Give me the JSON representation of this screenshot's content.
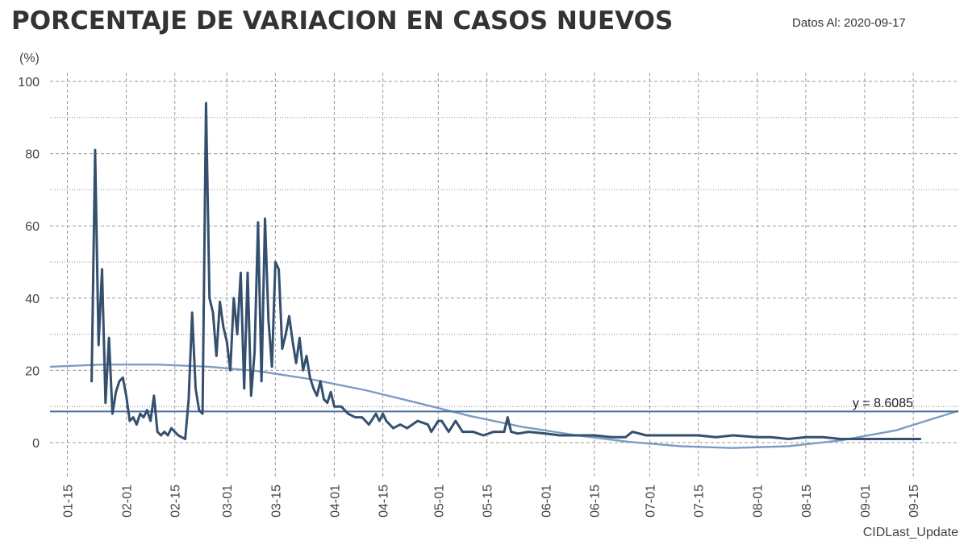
{
  "header": {
    "title": "PORCENTAJE DE VARIACION EN CASOS NUEVOS",
    "date_label": "Datos Al:",
    "date_value": "2020-09-17"
  },
  "chart_data": {
    "type": "line",
    "ylabel": "(%)",
    "xlabel": "CIDLast_Update",
    "ylim": [
      -8,
      100
    ],
    "yticks": [
      0,
      20,
      40,
      60,
      80,
      100
    ],
    "x_range": [
      "2020-01-10",
      "2020-09-28"
    ],
    "x_ticks": [
      "01-15",
      "02-01",
      "02-15",
      "03-01",
      "03-15",
      "04-01",
      "04-15",
      "05-01",
      "05-15",
      "06-01",
      "06-15",
      "07-01",
      "07-15",
      "08-01",
      "08-15",
      "09-01",
      "09-15"
    ],
    "x_tick_dates": [
      "2020-01-15",
      "2020-02-01",
      "2020-02-15",
      "2020-03-01",
      "2020-03-15",
      "2020-04-01",
      "2020-04-15",
      "2020-05-01",
      "2020-05-15",
      "2020-06-01",
      "2020-06-15",
      "2020-07-01",
      "2020-07-15",
      "2020-08-01",
      "2020-08-15",
      "2020-09-01",
      "2020-09-15"
    ],
    "grid": true,
    "annotation": "y = 8.6085",
    "mean_value": 8.6085,
    "colors": {
      "series": "#34506e",
      "trend": "#7b9cc4",
      "mean": "#4a6e9c"
    },
    "series": [
      {
        "key": "daily",
        "x": [
          "2020-01-22",
          "2020-01-23",
          "2020-01-24",
          "2020-01-25",
          "2020-01-26",
          "2020-01-27",
          "2020-01-28",
          "2020-01-29",
          "2020-01-30",
          "2020-01-31",
          "2020-02-01",
          "2020-02-02",
          "2020-02-03",
          "2020-02-04",
          "2020-02-05",
          "2020-02-06",
          "2020-02-07",
          "2020-02-08",
          "2020-02-09",
          "2020-02-10",
          "2020-02-11",
          "2020-02-12",
          "2020-02-13",
          "2020-02-14",
          "2020-02-15",
          "2020-02-16",
          "2020-02-17",
          "2020-02-18",
          "2020-02-19",
          "2020-02-20",
          "2020-02-21",
          "2020-02-22",
          "2020-02-23",
          "2020-02-24",
          "2020-02-25",
          "2020-02-26",
          "2020-02-27",
          "2020-02-28",
          "2020-02-29",
          "2020-03-01",
          "2020-03-02",
          "2020-03-03",
          "2020-03-04",
          "2020-03-05",
          "2020-03-06",
          "2020-03-07",
          "2020-03-08",
          "2020-03-09",
          "2020-03-10",
          "2020-03-11",
          "2020-03-12",
          "2020-03-13",
          "2020-03-14",
          "2020-03-15",
          "2020-03-16",
          "2020-03-17",
          "2020-03-18",
          "2020-03-19",
          "2020-03-20",
          "2020-03-21",
          "2020-03-22",
          "2020-03-23",
          "2020-03-24",
          "2020-03-25",
          "2020-03-26",
          "2020-03-27",
          "2020-03-28",
          "2020-03-29",
          "2020-03-30",
          "2020-03-31",
          "2020-04-01",
          "2020-04-03",
          "2020-04-05",
          "2020-04-07",
          "2020-04-09",
          "2020-04-11",
          "2020-04-13",
          "2020-04-14",
          "2020-04-15",
          "2020-04-16",
          "2020-04-18",
          "2020-04-20",
          "2020-04-22",
          "2020-04-25",
          "2020-04-28",
          "2020-04-29",
          "2020-05-01",
          "2020-05-02",
          "2020-05-04",
          "2020-05-06",
          "2020-05-08",
          "2020-05-11",
          "2020-05-14",
          "2020-05-17",
          "2020-05-20",
          "2020-05-21",
          "2020-05-22",
          "2020-05-24",
          "2020-05-27",
          "2020-06-01",
          "2020-06-05",
          "2020-06-10",
          "2020-06-15",
          "2020-06-20",
          "2020-06-24",
          "2020-06-26",
          "2020-06-30",
          "2020-07-05",
          "2020-07-10",
          "2020-07-15",
          "2020-07-20",
          "2020-07-25",
          "2020-08-01",
          "2020-08-05",
          "2020-08-10",
          "2020-08-15",
          "2020-08-20",
          "2020-08-25",
          "2020-09-01",
          "2020-09-05",
          "2020-09-10",
          "2020-09-14",
          "2020-09-17"
        ],
        "y": [
          17,
          81,
          27,
          48,
          11,
          29,
          8,
          14,
          17,
          18,
          13,
          6,
          7,
          5,
          8,
          7,
          9,
          6,
          13,
          3,
          2,
          3,
          2,
          4,
          3,
          2,
          1.5,
          1,
          12,
          36,
          15,
          9,
          8,
          94,
          40,
          36,
          24,
          39,
          32,
          28,
          20,
          40,
          30,
          47,
          15,
          47,
          13,
          25,
          61,
          17,
          62,
          34,
          21,
          50,
          48,
          26,
          30,
          35,
          28,
          22,
          29,
          20,
          24,
          18,
          15,
          13,
          17,
          12,
          11,
          14,
          10,
          10,
          8,
          7,
          7,
          5,
          8,
          6,
          8,
          6,
          4,
          5,
          4,
          6,
          5,
          3,
          6,
          6,
          3,
          6,
          3,
          3,
          2,
          3,
          3,
          7,
          3,
          2.5,
          3,
          2.5,
          2,
          2,
          2,
          1.5,
          1.5,
          3,
          2,
          2,
          2,
          2,
          1.5,
          2,
          1.5,
          1.5,
          1,
          1.5,
          1.5,
          1,
          1,
          1,
          1,
          1,
          1
        ]
      },
      {
        "key": "trend",
        "x": [
          "2020-01-10",
          "2020-01-25",
          "2020-02-10",
          "2020-02-25",
          "2020-03-10",
          "2020-03-25",
          "2020-04-10",
          "2020-04-25",
          "2020-05-10",
          "2020-05-25",
          "2020-06-10",
          "2020-06-25",
          "2020-07-10",
          "2020-07-25",
          "2020-08-10",
          "2020-08-25",
          "2020-09-10",
          "2020-09-28"
        ],
        "y": [
          21,
          21.6,
          21.6,
          21,
          19.8,
          17.6,
          14.5,
          11,
          7.4,
          4.4,
          2,
          0.2,
          -1,
          -1.5,
          -1,
          0.6,
          3.4,
          8.8
        ]
      }
    ]
  }
}
